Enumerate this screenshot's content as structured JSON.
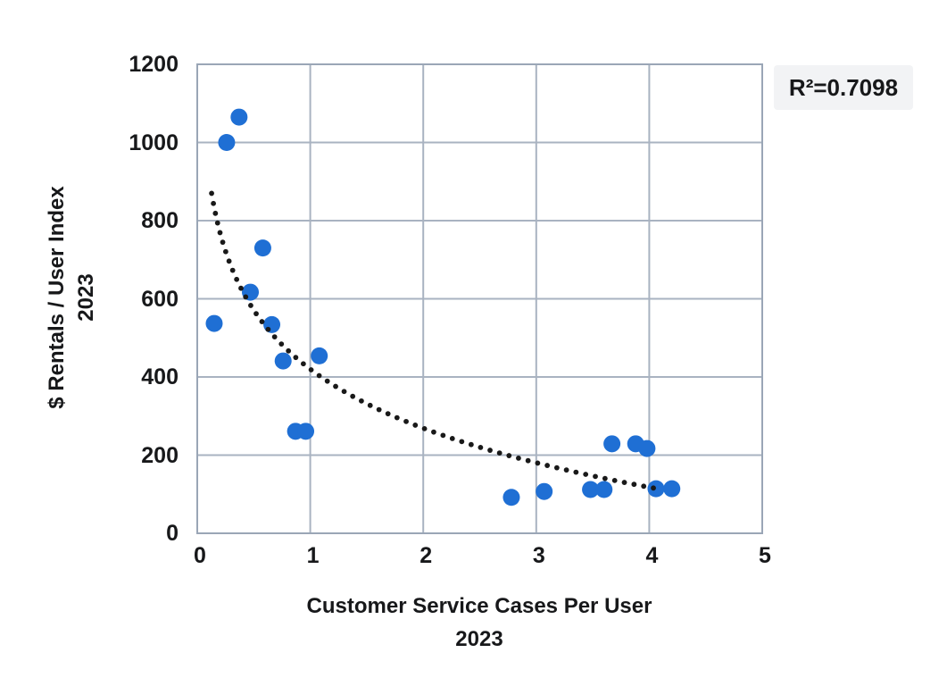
{
  "chart_data": {
    "type": "scatter",
    "title": "",
    "xlabel_lines": [
      "Customer Service Cases Per User",
      "2023"
    ],
    "ylabel_lines": [
      "$ Rentals / User Index",
      "2023"
    ],
    "xlim": [
      0,
      5
    ],
    "ylim": [
      0,
      1200
    ],
    "x_ticks": [
      0,
      1,
      2,
      3,
      4,
      5
    ],
    "y_ticks": [
      0,
      200,
      400,
      600,
      800,
      1000,
      1200
    ],
    "grid": true,
    "legend": "none",
    "points": [
      [
        0.37,
        1065
      ],
      [
        0.26,
        1000
      ],
      [
        0.58,
        730
      ],
      [
        0.47,
        617
      ],
      [
        0.15,
        537
      ],
      [
        0.66,
        534
      ],
      [
        0.76,
        441
      ],
      [
        1.08,
        454
      ],
      [
        0.87,
        261
      ],
      [
        0.96,
        261
      ],
      [
        2.78,
        92
      ],
      [
        3.07,
        107
      ],
      [
        3.48,
        112
      ],
      [
        3.6,
        112
      ],
      [
        3.67,
        229
      ],
      [
        3.88,
        229
      ],
      [
        3.98,
        217
      ],
      [
        4.06,
        114
      ],
      [
        4.2,
        114
      ]
    ],
    "trendline": {
      "fit": "logarithmic",
      "formula": "y = 420 - 218*ln(x)",
      "a": 420,
      "b": -218,
      "x_start": 0.127,
      "x_end": 4.06,
      "style": "dotted"
    },
    "annotation": {
      "text": "R²=0.7098",
      "r_squared": 0.7098,
      "position": "top-right"
    }
  },
  "colors": {
    "point": "#1f6fd4",
    "grid": "#a9b3c1",
    "axis_border": "#9aa6b6",
    "trendline": "#191919",
    "text": "#17181a",
    "annotation_bg": "#f2f3f5"
  }
}
